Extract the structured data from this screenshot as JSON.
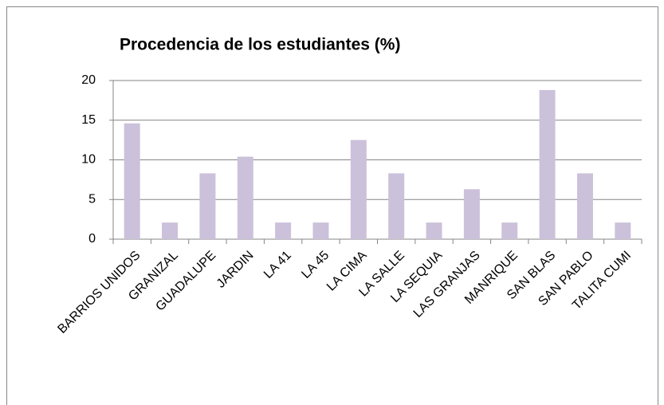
{
  "chart_data": {
    "type": "bar",
    "title": "Procedencia de los estudiantes (%)",
    "categories": [
      "BARRIOS UNIDOS",
      "GRANIZAL",
      "GUADALUPE",
      "JARDIN",
      "LA 41",
      "LA 45",
      "LA CIMA",
      "LA SALLE",
      "LA SEQUIA",
      "LAS GRANJAS",
      "MANRIQUE",
      "SAN BLAS",
      "SAN PABLO",
      "TALITA CUMI"
    ],
    "values": [
      14.6,
      2.1,
      8.3,
      10.4,
      2.1,
      2.1,
      12.5,
      8.3,
      2.1,
      6.3,
      2.1,
      18.8,
      8.3,
      2.1
    ],
    "color": "#ccc1da",
    "ylim": [
      0,
      20
    ],
    "yticks": [
      0,
      5,
      10,
      15,
      20
    ],
    "grid": true
  }
}
